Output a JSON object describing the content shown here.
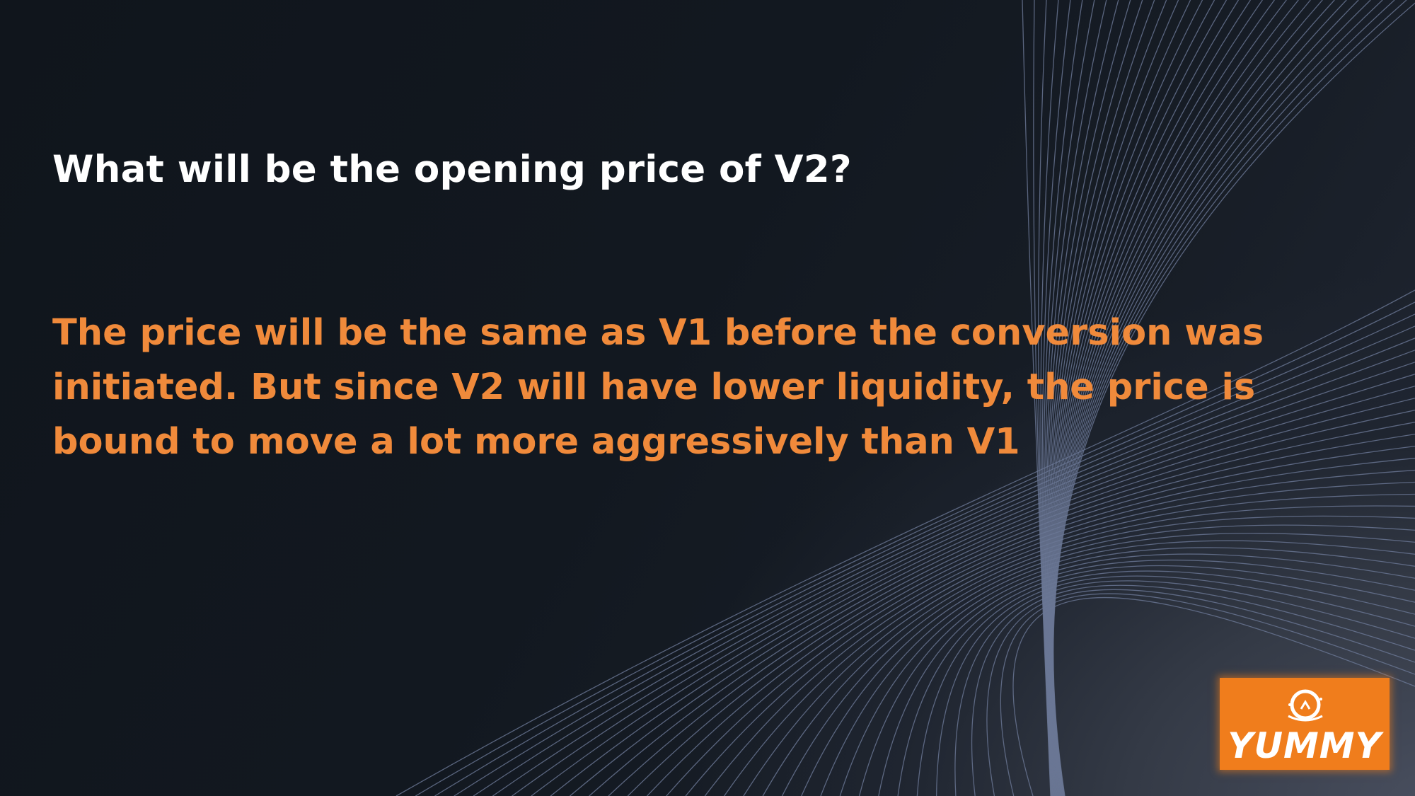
{
  "slide": {
    "question": "What will be the opening price of V2?",
    "answer": "The price will be the same as V1 before the conversion was initiated. But since V2 will have lower liquidity, the price is bound to move a lot more aggressively than V1"
  },
  "logo": {
    "text": "YUMMY",
    "icon": "yummy-logo-icon"
  },
  "colors": {
    "background": "#11171e",
    "question": "#ffffff",
    "answer": "#f08a3b",
    "logo_bg": "#f07d1c",
    "wave_lines": "#6b7896"
  }
}
